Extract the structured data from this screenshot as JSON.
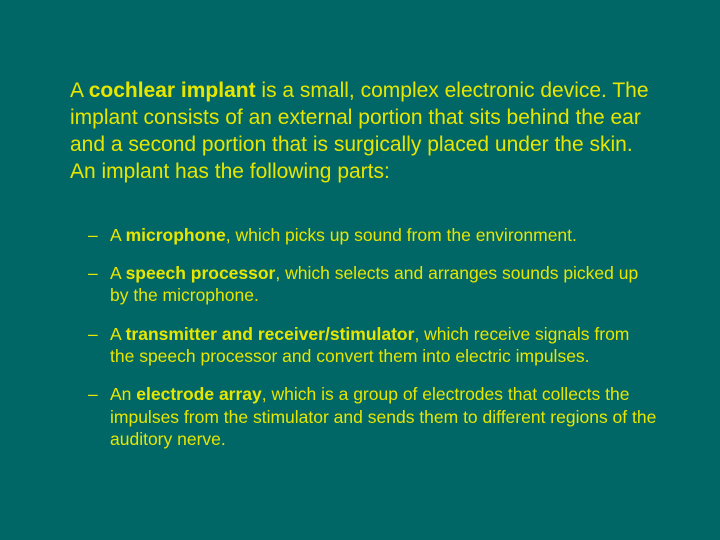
{
  "background_color": "#006666",
  "text_color": "#e6e600",
  "intro": {
    "prefix": "A ",
    "term": "cochlear implant",
    "rest": " is a small, complex electronic device. The implant consists of an external portion that sits behind the ear and a second portion that is surgically placed under the skin. An implant has the following parts:",
    "fontsize": 21
  },
  "bullets": [
    {
      "lead": "A ",
      "name": "microphone",
      "rest": ", which picks up sound from the environment."
    },
    {
      "lead": "A ",
      "name": "speech processor",
      "rest": ", which selects and arranges sounds picked up by the microphone."
    },
    {
      "lead": "A ",
      "name": "transmitter and receiver/stimulator",
      "rest": ", which receive signals from the speech processor and convert them into electric impulses."
    },
    {
      "lead": "An ",
      "name": "electrode array",
      "rest": ", which is a group of electrodes that collects the impulses from the stimulator and sends them to different regions of the auditory nerve."
    }
  ],
  "bullet_fontsize": 17.5
}
